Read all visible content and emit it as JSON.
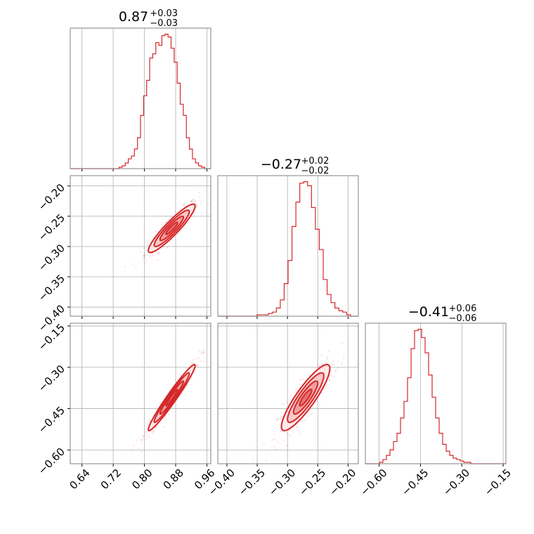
{
  "chart_data": {
    "type": "corner",
    "color": "#d62728",
    "grid": true,
    "parameters": [
      {
        "median": 0.87,
        "plus": 0.03,
        "minus": 0.03
      },
      {
        "median": -0.27,
        "plus": 0.02,
        "minus": 0.02
      },
      {
        "median": -0.41,
        "plus": 0.06,
        "minus": 0.06
      }
    ],
    "titles": [
      {
        "main": "0.87",
        "sup": "+0.03",
        "sub": "−0.03"
      },
      {
        "main": "−0.27",
        "sup": "+0.02",
        "sub": "−0.02"
      },
      {
        "main": "−0.41",
        "sup": "+0.06",
        "sub": "−0.06"
      }
    ],
    "axes": [
      {
        "range": [
          0.61,
          0.97
        ],
        "ticks": [
          0.64,
          0.72,
          0.8,
          0.88,
          0.96
        ],
        "tick_labels": [
          "0.64",
          "0.72",
          "0.80",
          "0.88",
          "0.96"
        ]
      },
      {
        "range": [
          -0.415,
          -0.183
        ],
        "ticks": [
          -0.4,
          -0.35,
          -0.3,
          -0.25,
          -0.2
        ],
        "tick_labels": [
          "−0.40",
          "−0.35",
          "−0.30",
          "−0.25",
          "−0.20"
        ]
      },
      {
        "range": [
          -0.65,
          -0.14
        ],
        "ticks": [
          -0.6,
          -0.45,
          -0.3,
          -0.15
        ],
        "tick_labels": [
          "−0.60",
          "−0.45",
          "−0.30",
          "−0.15"
        ]
      }
    ],
    "histograms": [
      {
        "param": 0,
        "bin_edges": [
          0.61,
          0.97
        ],
        "counts": [
          0,
          0,
          0,
          0,
          0,
          0,
          0,
          0,
          0,
          0,
          0,
          0,
          0,
          0,
          0,
          0,
          1,
          2,
          4,
          7,
          9,
          14,
          22,
          38,
          52,
          63,
          79,
          82,
          90,
          88,
          95,
          96,
          94,
          86,
          76,
          61,
          46,
          38,
          22,
          14,
          7,
          4,
          2,
          1,
          0,
          0
        ]
      },
      {
        "param": 1,
        "bin_edges": [
          -0.415,
          -0.183
        ],
        "counts": [
          0,
          0,
          0,
          0,
          0,
          0,
          0,
          0,
          0,
          0,
          1,
          1,
          1,
          2,
          3,
          6,
          12,
          24,
          41,
          66,
          84,
          98,
          99,
          96,
          80,
          64,
          49,
          27,
          16,
          10,
          6,
          4,
          3,
          1,
          0,
          0
        ]
      },
      {
        "param": 2,
        "bin_edges": [
          -0.65,
          -0.14
        ],
        "counts": [
          0,
          0,
          0,
          0,
          1,
          3,
          6,
          10,
          16,
          22,
          33,
          45,
          62,
          83,
          96,
          97,
          91,
          80,
          64,
          48,
          33,
          22,
          14,
          9,
          6,
          4,
          3,
          2,
          1,
          1,
          0,
          0,
          0,
          0,
          0,
          0,
          0,
          0,
          0,
          0
        ]
      }
    ],
    "pairs": [
      {
        "x_param": 0,
        "y_param": 1,
        "correlation": 0.92
      },
      {
        "x_param": 0,
        "y_param": 2,
        "correlation": 0.97
      },
      {
        "x_param": 1,
        "y_param": 2,
        "correlation": 0.88
      }
    ]
  }
}
